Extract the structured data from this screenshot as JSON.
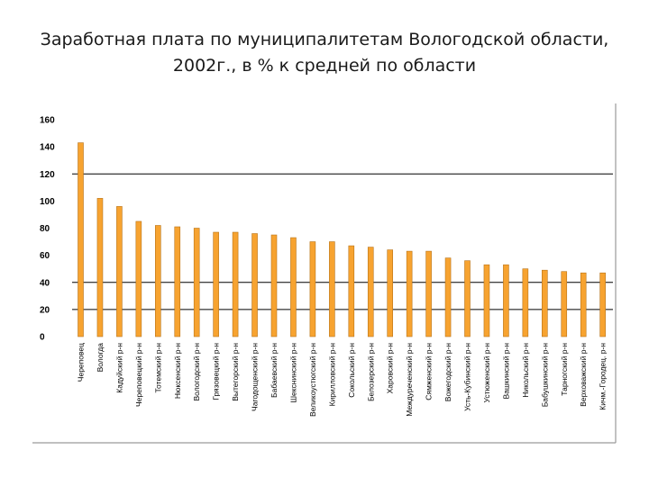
{
  "chart_data": {
    "type": "bar",
    "title_line1": "Заработная плата по муниципалитетам Вологодской области,",
    "title_line2": "2002г., в % к средней по области",
    "xlabel": "",
    "ylabel": "",
    "ylim": [
      0,
      160
    ],
    "yticks": [
      0,
      20,
      40,
      60,
      80,
      100,
      120,
      140,
      160
    ],
    "grid": "horizontal",
    "bar_color": "#f7a330",
    "bar_edge_color": "#b8741a",
    "categories": [
      "Череповец",
      "Вологда",
      "Кадуйский р-н",
      "Череповецкий р-н",
      "Тотемский р-н",
      "Нюксенский р-н",
      "Вологодский р-н",
      "Грязовецкий р-н",
      "Вытегорский р-н",
      "Чагодощенский р-н",
      "Бабаевский р-н",
      "Шекснинский р-н",
      "Великоустюгский р-н",
      "Кирилловский р-н",
      "Сокольский р-н",
      "Белозерский р-н",
      "Харовский р-н",
      "Междуреченский р-н",
      "Сямженский р-н",
      "Вожегодский р-н",
      "Усть-Кубинский р-н",
      "Устюженский р-н",
      "Вашкинский р-н",
      "Никольский р-н",
      "Бабушкинский р-н",
      "Тарногский р-н",
      "Верховажский р-н",
      "Кичм.-Городец. р-н"
    ],
    "values": [
      143,
      102,
      96,
      85,
      82,
      81,
      80,
      77,
      77,
      76,
      75,
      73,
      70,
      70,
      67,
      66,
      64,
      63,
      63,
      58,
      56,
      53,
      53,
      50,
      49,
      48,
      47,
      47
    ]
  }
}
